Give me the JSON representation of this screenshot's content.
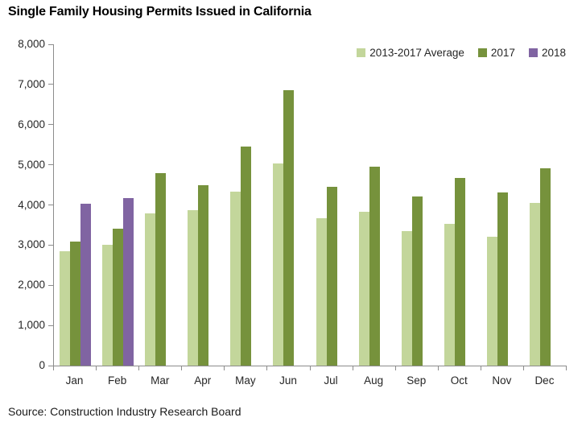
{
  "chart_data": {
    "type": "bar",
    "title": "Single Family Housing Permits Issued in California",
    "source": "Source: Construction Industry Research Board",
    "categories": [
      "Jan",
      "Feb",
      "Mar",
      "Apr",
      "May",
      "Jun",
      "Jul",
      "Aug",
      "Sep",
      "Oct",
      "Nov",
      "Dec"
    ],
    "series": [
      {
        "name": "2013-2017 Average",
        "color": "#C3D69B",
        "values": [
          2840,
          3010,
          3780,
          3860,
          4340,
          5040,
          3670,
          3820,
          3350,
          3530,
          3210,
          4060
        ]
      },
      {
        "name": "2017",
        "color": "#76923C",
        "values": [
          3080,
          3410,
          4800,
          4500,
          5460,
          6860,
          4460,
          4960,
          4220,
          4680,
          4320,
          4920
        ]
      },
      {
        "name": "2018",
        "color": "#8064A2",
        "values": [
          4040,
          4180,
          null,
          null,
          null,
          null,
          null,
          null,
          null,
          null,
          null,
          null
        ]
      }
    ],
    "ylim": [
      0,
      8000
    ],
    "ytick_step": 1000,
    "ytick_labels": [
      "0",
      "1,000",
      "2,000",
      "3,000",
      "4,000",
      "5,000",
      "6,000",
      "7,000",
      "8,000"
    ],
    "grid": false,
    "legend_position": "top-right",
    "axis_color": "#8C8C8C"
  }
}
